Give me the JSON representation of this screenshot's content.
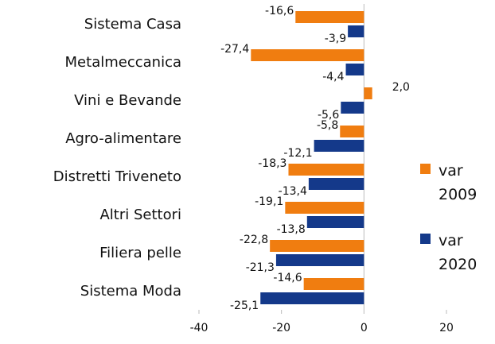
{
  "chart_data": {
    "type": "hbar",
    "categories": [
      "Sistema Casa",
      "Metalmeccanica",
      "Vini e Bevande",
      "Agro-alimentare",
      "Distretti Triveneto",
      "Altri Settori",
      "Filiera pelle",
      "Sistema Moda"
    ],
    "series": [
      {
        "name": "var 2009",
        "color": "#f07d10",
        "values": [
          -16.6,
          -27.4,
          2.0,
          -5.8,
          -18.3,
          -19.1,
          -22.8,
          -14.6
        ],
        "value_labels": [
          "-16,6",
          "-27,4",
          "2,0",
          "-5,8",
          "-18,3",
          "-19,1",
          "-22,8",
          "-14,6"
        ]
      },
      {
        "name": "var 2020",
        "color": "#14398a",
        "values": [
          -3.9,
          -4.4,
          -5.6,
          -12.1,
          -13.4,
          -13.8,
          -21.3,
          -25.1
        ],
        "value_labels": [
          "-3,9",
          "-4,4",
          "-5,6",
          "-12,1",
          "-13,4",
          "-13,8",
          "-21,3",
          "-25,1"
        ]
      }
    ],
    "xlim": [
      -40,
      20
    ],
    "xticks": [
      -40,
      -20,
      0,
      20
    ],
    "legend": "right"
  }
}
